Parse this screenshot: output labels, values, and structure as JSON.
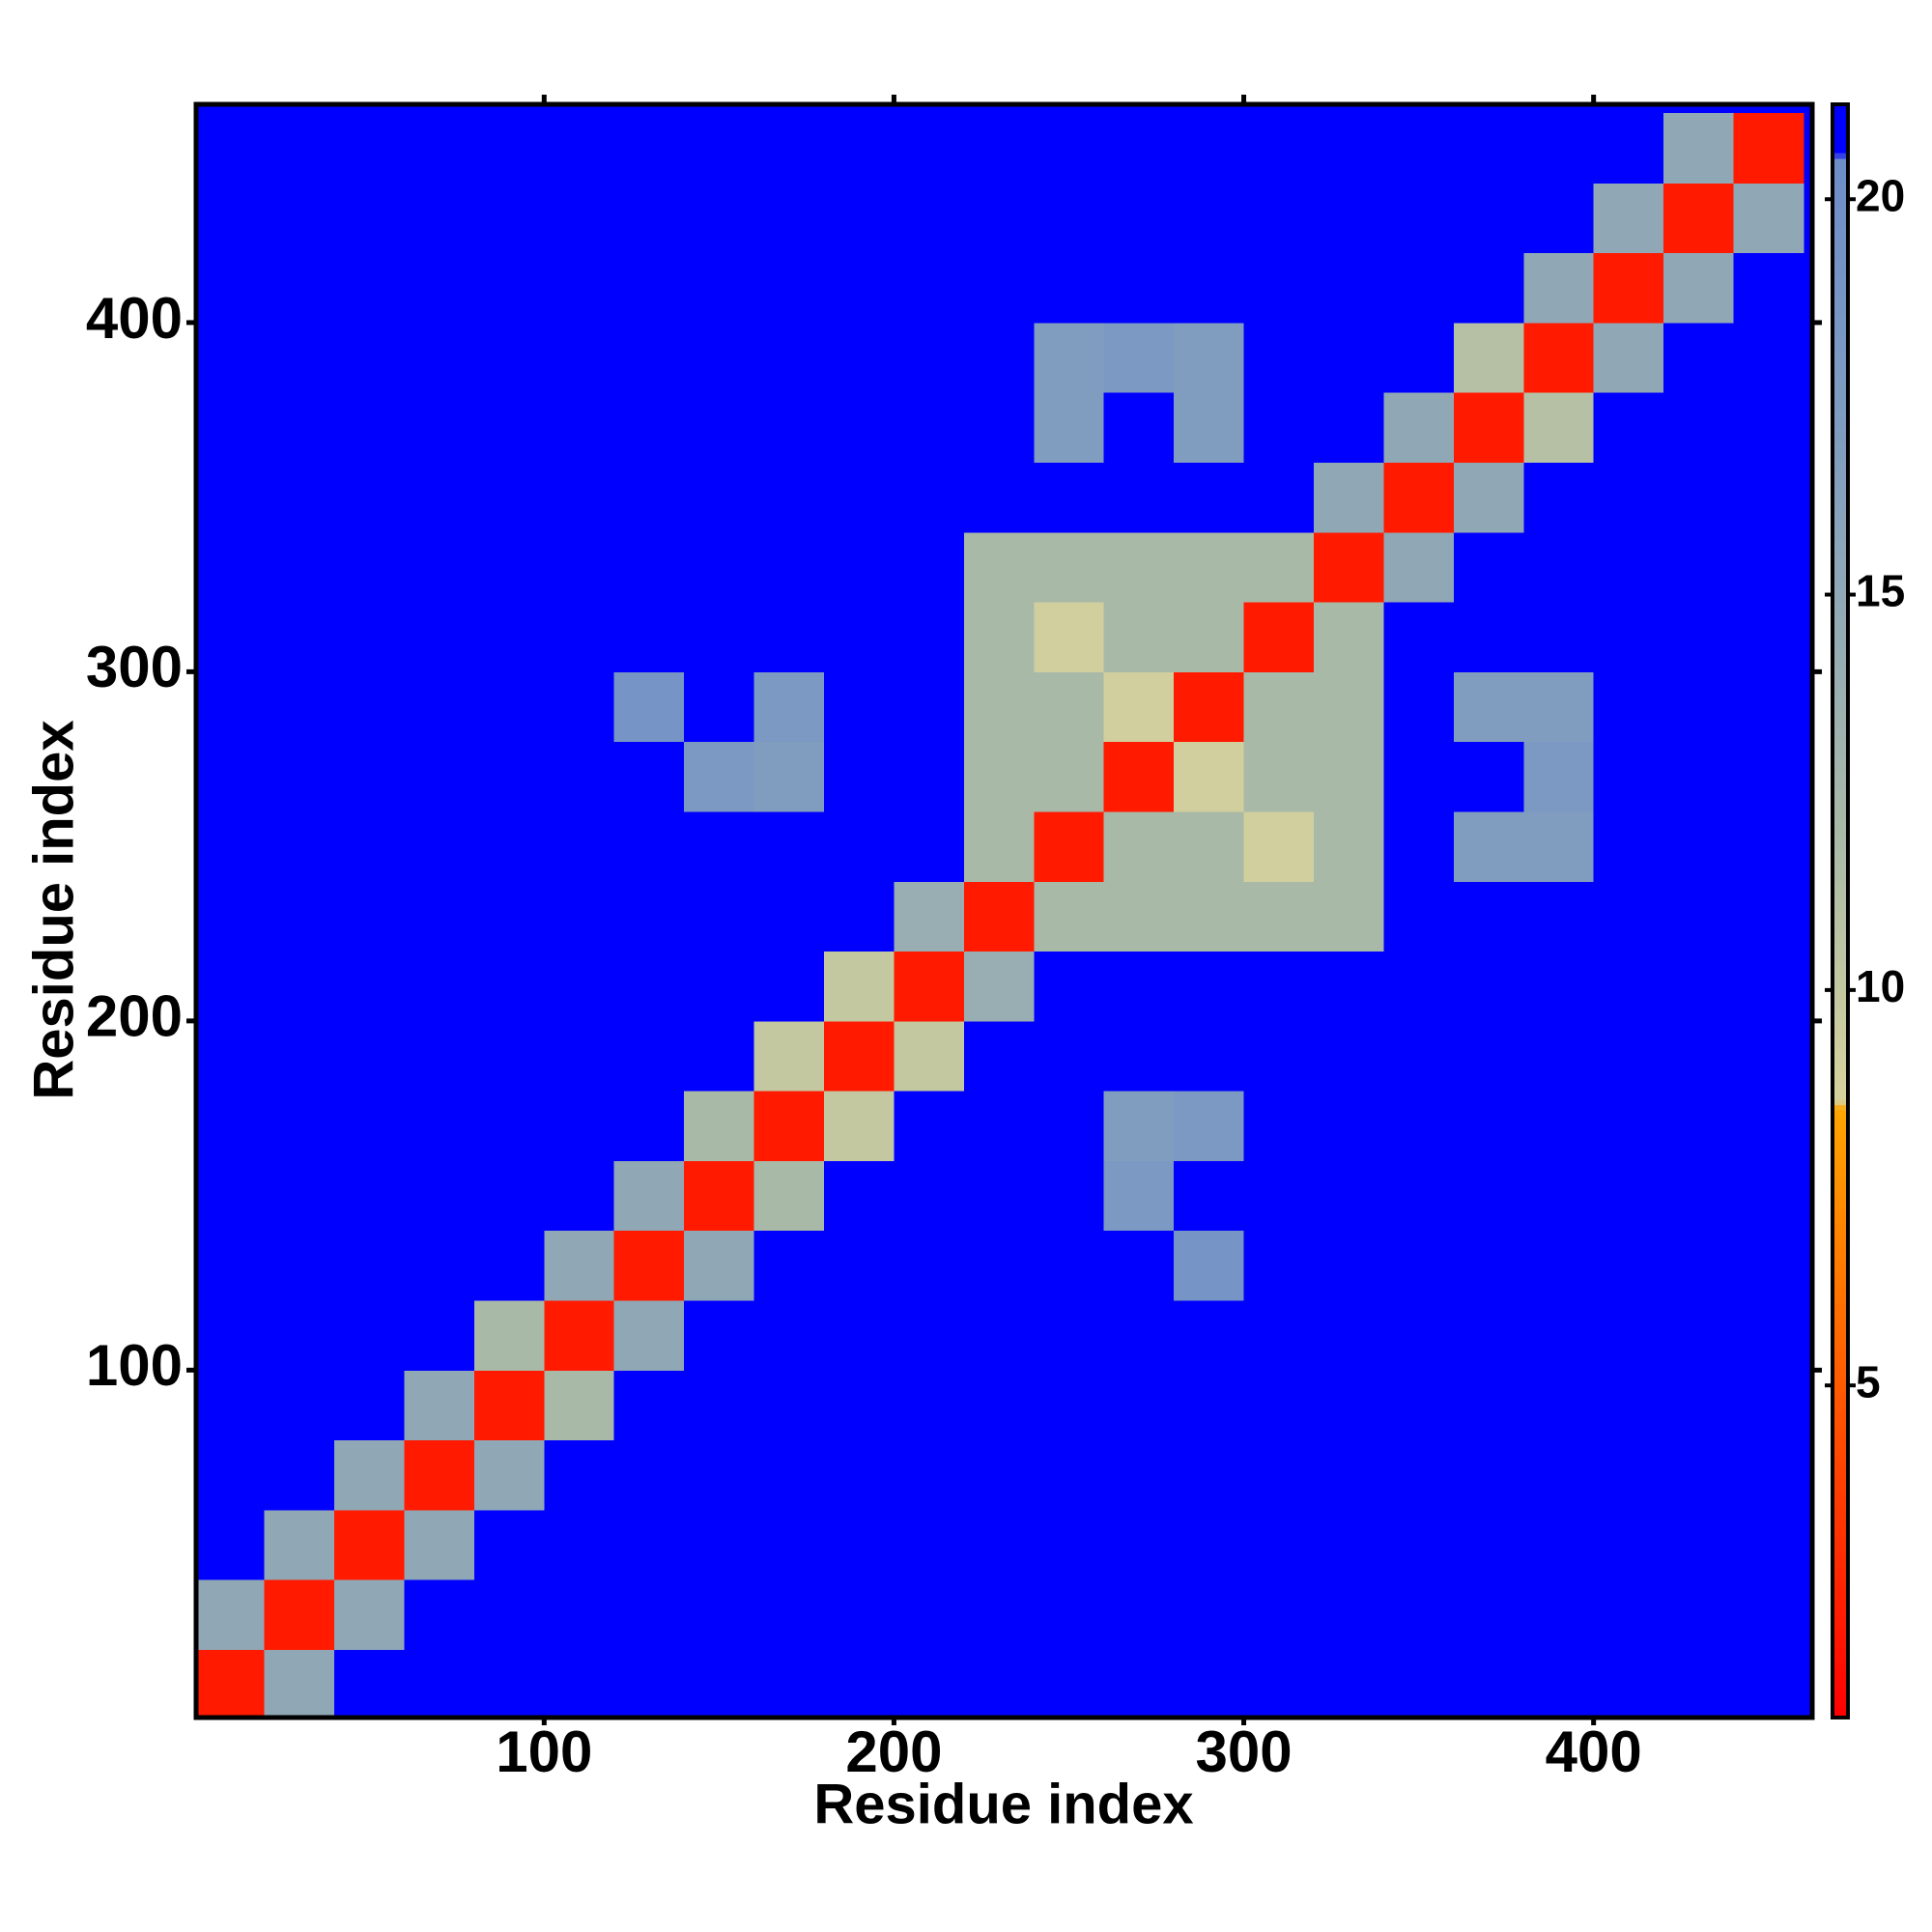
{
  "chart_data": {
    "type": "heatmap",
    "xlabel": "Residue index",
    "ylabel": "Residue index",
    "x": [
      10,
      30,
      50,
      70,
      90,
      110,
      130,
      150,
      170,
      190,
      210,
      230,
      250,
      270,
      290,
      310,
      330,
      350,
      370,
      390,
      410,
      430,
      450
    ],
    "y": [
      10,
      30,
      50,
      70,
      90,
      110,
      130,
      150,
      170,
      190,
      210,
      230,
      250,
      270,
      290,
      310,
      330,
      350,
      370,
      390,
      410,
      430,
      450
    ],
    "z": [
      [
        2,
        15,
        21,
        21,
        21,
        21,
        21,
        21,
        21,
        21,
        21,
        21,
        21,
        21,
        21,
        21,
        21,
        21,
        21,
        21,
        21,
        21,
        21
      ],
      [
        15,
        2,
        15,
        21,
        21,
        21,
        21,
        21,
        21,
        21,
        21,
        21,
        21,
        21,
        21,
        21,
        21,
        21,
        21,
        21,
        21,
        21,
        21
      ],
      [
        21,
        15,
        2,
        15,
        21,
        21,
        21,
        21,
        21,
        21,
        21,
        21,
        21,
        21,
        21,
        21,
        21,
        21,
        21,
        21,
        21,
        21,
        21
      ],
      [
        21,
        21,
        15,
        2,
        15,
        21,
        21,
        21,
        21,
        21,
        21,
        21,
        21,
        21,
        21,
        21,
        21,
        21,
        21,
        21,
        21,
        21,
        21
      ],
      [
        21,
        21,
        21,
        15,
        2,
        12,
        21,
        21,
        21,
        21,
        21,
        21,
        21,
        21,
        21,
        21,
        21,
        21,
        21,
        21,
        21,
        21,
        21
      ],
      [
        21,
        21,
        21,
        21,
        12,
        2,
        15,
        21,
        21,
        21,
        21,
        21,
        21,
        21,
        21,
        21,
        21,
        21,
        21,
        21,
        21,
        21,
        21
      ],
      [
        21,
        21,
        21,
        21,
        21,
        15,
        2,
        15,
        21,
        21,
        21,
        21,
        21,
        21,
        19,
        21,
        21,
        21,
        21,
        21,
        21,
        21,
        21
      ],
      [
        21,
        21,
        21,
        21,
        21,
        21,
        15,
        2,
        12,
        21,
        21,
        21,
        21,
        18,
        21,
        21,
        21,
        21,
        21,
        21,
        21,
        21,
        21
      ],
      [
        21,
        21,
        21,
        21,
        21,
        21,
        21,
        12,
        2,
        10,
        21,
        21,
        21,
        17,
        18,
        21,
        21,
        21,
        21,
        21,
        21,
        21,
        21
      ],
      [
        21,
        21,
        21,
        21,
        21,
        21,
        21,
        21,
        10,
        2,
        10,
        21,
        21,
        21,
        21,
        21,
        21,
        21,
        21,
        21,
        21,
        21,
        21
      ],
      [
        21,
        21,
        21,
        21,
        21,
        21,
        21,
        21,
        21,
        10,
        2,
        14,
        21,
        21,
        21,
        21,
        21,
        21,
        21,
        21,
        21,
        21,
        21
      ],
      [
        21,
        21,
        21,
        21,
        21,
        21,
        21,
        21,
        21,
        21,
        14,
        2,
        12,
        12,
        12,
        12,
        12,
        21,
        21,
        21,
        21,
        21,
        21
      ],
      [
        21,
        21,
        21,
        21,
        21,
        21,
        21,
        21,
        21,
        21,
        21,
        12,
        2,
        12,
        12,
        9,
        12,
        21,
        17,
        17,
        21,
        21,
        21
      ],
      [
        21,
        21,
        21,
        21,
        21,
        21,
        21,
        18,
        17,
        21,
        21,
        12,
        12,
        2,
        9,
        12,
        12,
        21,
        21,
        18,
        21,
        21,
        21
      ],
      [
        21,
        21,
        21,
        21,
        21,
        21,
        19,
        21,
        18,
        21,
        21,
        12,
        12,
        9,
        2,
        12,
        12,
        21,
        17,
        17,
        21,
        21,
        21
      ],
      [
        21,
        21,
        21,
        21,
        21,
        21,
        21,
        21,
        21,
        21,
        21,
        12,
        9,
        12,
        12,
        2,
        12,
        21,
        21,
        21,
        21,
        21,
        21
      ],
      [
        21,
        21,
        21,
        21,
        21,
        21,
        21,
        21,
        21,
        21,
        21,
        12,
        12,
        12,
        12,
        12,
        2,
        15,
        21,
        21,
        21,
        21,
        21
      ],
      [
        21,
        21,
        21,
        21,
        21,
        21,
        21,
        21,
        21,
        21,
        21,
        21,
        21,
        21,
        21,
        21,
        15,
        2,
        15,
        21,
        21,
        21,
        21
      ],
      [
        21,
        21,
        21,
        21,
        21,
        21,
        21,
        21,
        21,
        21,
        21,
        21,
        17,
        21,
        17,
        21,
        21,
        15,
        2,
        11,
        21,
        21,
        21
      ],
      [
        21,
        21,
        21,
        21,
        21,
        21,
        21,
        21,
        21,
        21,
        21,
        21,
        17,
        18,
        17,
        21,
        21,
        21,
        11,
        2,
        15,
        21,
        21
      ],
      [
        21,
        21,
        21,
        21,
        21,
        21,
        21,
        21,
        21,
        21,
        21,
        21,
        21,
        21,
        21,
        21,
        21,
        21,
        21,
        15,
        2,
        15,
        21
      ],
      [
        21,
        21,
        21,
        21,
        21,
        21,
        21,
        21,
        21,
        21,
        21,
        21,
        21,
        21,
        21,
        21,
        21,
        21,
        21,
        21,
        15,
        2,
        15
      ],
      [
        21,
        21,
        21,
        21,
        21,
        21,
        21,
        21,
        21,
        21,
        21,
        21,
        21,
        21,
        21,
        21,
        21,
        21,
        21,
        21,
        21,
        15,
        2
      ]
    ],
    "xlim": [
      0.5,
      462.5
    ],
    "ylim": [
      0.5,
      462.5
    ],
    "xticks": [
      100,
      200,
      300,
      400
    ],
    "yticks": [
      100,
      200,
      300,
      400
    ],
    "zlim": [
      0.8,
      21.2
    ],
    "zticks": [
      5,
      10,
      15,
      20
    ],
    "colorscale": [
      [
        0.8,
        "#ff0000"
      ],
      [
        8.5,
        "#ffa500"
      ],
      [
        8.6,
        "#d6d29c"
      ],
      [
        12,
        "#a9b9a8"
      ],
      [
        17,
        "#809dc0"
      ],
      [
        20.5,
        "#6e8ec8"
      ],
      [
        20.6,
        "#0000ff"
      ],
      [
        21.2,
        "#0000ff"
      ]
    ]
  }
}
